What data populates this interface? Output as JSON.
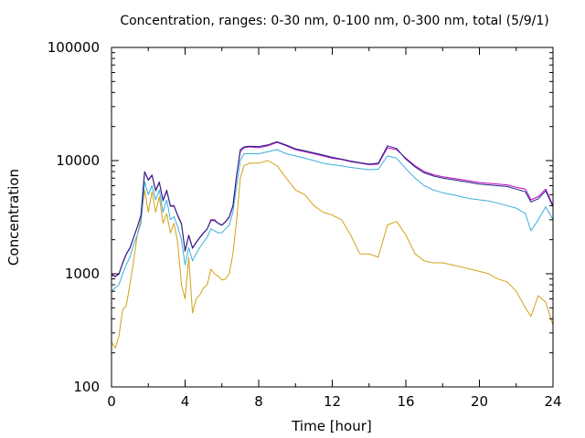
{
  "chart_data": {
    "type": "line",
    "title": "Concentration, ranges: 0-30 nm, 0-100 nm, 0-300 nm, total (5/9/1)",
    "xlabel": "Time [hour]",
    "ylabel": "Concentration",
    "xlim": [
      0,
      24
    ],
    "ylim": [
      100,
      100000
    ],
    "y_scale": "log",
    "grid": false,
    "legend": "none",
    "x_ticks": [
      0,
      4,
      8,
      12,
      16,
      20,
      24
    ],
    "x_tick_labels": [
      "0",
      "4",
      "8",
      "12",
      "16",
      "20",
      "24"
    ],
    "y_ticks": [
      100,
      1000,
      10000,
      100000
    ],
    "y_tick_labels": [
      "100",
      "1000",
      "10000",
      "100000"
    ],
    "series": [
      {
        "color": "#d4a017",
        "x": [
          0,
          0.2,
          0.4,
          0.6,
          0.8,
          1.0,
          1.2,
          1.4,
          1.6,
          1.8,
          2.0,
          2.2,
          2.4,
          2.6,
          2.8,
          3.0,
          3.2,
          3.4,
          3.6,
          3.8,
          4.0,
          4.2,
          4.4,
          4.6,
          4.8,
          5.0,
          5.2,
          5.4,
          5.6,
          5.8,
          6.0,
          6.2,
          6.4,
          6.6,
          6.8,
          7.0,
          7.2,
          7.5,
          8.0,
          8.5,
          9.0,
          9.5,
          10.0,
          10.5,
          11.0,
          11.5,
          12.0,
          12.5,
          13.0,
          13.5,
          14.0,
          14.5,
          15.0,
          15.5,
          16.0,
          16.5,
          17.0,
          17.5,
          18.0,
          18.5,
          19.0,
          19.5,
          20.0,
          20.5,
          21.0,
          21.5,
          22.0,
          22.5,
          22.8,
          23.2,
          23.6,
          24.0
        ],
        "values": [
          250,
          220,
          280,
          480,
          520,
          800,
          1300,
          2200,
          3000,
          5500,
          3500,
          5300,
          3500,
          4800,
          2800,
          3400,
          2300,
          2800,
          1900,
          800,
          600,
          1400,
          450,
          600,
          650,
          750,
          800,
          1100,
          1000,
          950,
          880,
          900,
          1000,
          1500,
          3000,
          7000,
          9000,
          9500,
          9500,
          10000,
          9000,
          7000,
          5500,
          5000,
          4000,
          3500,
          3300,
          3000,
          2200,
          1500,
          1500,
          1400,
          2700,
          2900,
          2200,
          1500,
          1300,
          1250,
          1250,
          1200,
          1150,
          1100,
          1050,
          1000,
          900,
          850,
          700,
          500,
          420,
          640,
          560,
          350
        ]
      },
      {
        "color": "#3aaedc",
        "x": [
          0,
          0.2,
          0.4,
          0.6,
          0.8,
          1.0,
          1.2,
          1.4,
          1.6,
          1.8,
          2.0,
          2.2,
          2.4,
          2.6,
          2.8,
          3.0,
          3.2,
          3.4,
          3.6,
          3.8,
          4.0,
          4.2,
          4.4,
          4.6,
          4.8,
          5.0,
          5.2,
          5.4,
          5.6,
          5.8,
          6.0,
          6.2,
          6.4,
          6.6,
          6.8,
          7.0,
          7.2,
          7.5,
          8.0,
          8.5,
          9.0,
          9.5,
          10.0,
          10.5,
          11.0,
          11.5,
          12.0,
          12.5,
          13.0,
          13.5,
          14.0,
          14.5,
          15.0,
          15.5,
          16.0,
          16.5,
          17.0,
          17.5,
          18.0,
          18.5,
          19.0,
          19.5,
          20.0,
          20.5,
          21.0,
          21.5,
          22.0,
          22.5,
          22.8,
          23.2,
          23.6,
          24.0
        ],
        "values": [
          700,
          750,
          800,
          1000,
          1200,
          1400,
          1800,
          2200,
          2800,
          6500,
          5000,
          6000,
          4500,
          5500,
          3500,
          4500,
          3000,
          3200,
          2600,
          2000,
          1200,
          1700,
          1300,
          1500,
          1700,
          1900,
          2100,
          2500,
          2400,
          2300,
          2300,
          2500,
          2700,
          3500,
          6000,
          10000,
          11500,
          11500,
          11500,
          12000,
          12500,
          11500,
          11000,
          10500,
          10000,
          9500,
          9200,
          9000,
          8700,
          8500,
          8300,
          8400,
          11000,
          10500,
          8500,
          7000,
          6000,
          5500,
          5200,
          5000,
          4800,
          4600,
          4500,
          4400,
          4200,
          4000,
          3800,
          3400,
          2400,
          3000,
          3900,
          3000
        ]
      },
      {
        "color": "#c000c0",
        "x": [
          0,
          0.2,
          0.4,
          0.6,
          0.8,
          1.0,
          1.2,
          1.4,
          1.6,
          1.8,
          2.0,
          2.2,
          2.4,
          2.6,
          2.8,
          3.0,
          3.2,
          3.4,
          3.6,
          3.8,
          4.0,
          4.2,
          4.4,
          4.6,
          4.8,
          5.0,
          5.2,
          5.4,
          5.6,
          5.8,
          6.0,
          6.2,
          6.4,
          6.6,
          6.8,
          7.0,
          7.2,
          7.5,
          8.0,
          8.5,
          9.0,
          9.5,
          10.0,
          10.5,
          11.0,
          11.5,
          12.0,
          12.5,
          13.0,
          13.5,
          14.0,
          14.5,
          15.0,
          15.5,
          16.0,
          16.5,
          17.0,
          17.5,
          18.0,
          18.5,
          19.0,
          19.5,
          20.0,
          20.5,
          21.0,
          21.5,
          22.0,
          22.5,
          22.8,
          23.2,
          23.6,
          24.0
        ],
        "values": [
          1000,
          950,
          1000,
          1250,
          1500,
          1700,
          2100,
          2600,
          3300,
          8000,
          6800,
          7500,
          5500,
          6500,
          4500,
          5500,
          4000,
          4000,
          3300,
          2800,
          1600,
          2200,
          1700,
          1900,
          2100,
          2300,
          2500,
          3000,
          3000,
          2800,
          2700,
          2900,
          3200,
          4000,
          7500,
          12000,
          13000,
          13200,
          13000,
          13500,
          14500,
          13500,
          12500,
          12000,
          11500,
          11000,
          10500,
          10200,
          9800,
          9500,
          9200,
          9300,
          13000,
          12500,
          10500,
          9000,
          8000,
          7500,
          7200,
          7000,
          6800,
          6600,
          6400,
          6300,
          6200,
          6100,
          5800,
          5600,
          4500,
          4800,
          5600,
          4000
        ]
      },
      {
        "color": "#1a237e",
        "x": [
          0,
          0.2,
          0.4,
          0.6,
          0.8,
          1.0,
          1.2,
          1.4,
          1.6,
          1.8,
          2.0,
          2.2,
          2.4,
          2.6,
          2.8,
          3.0,
          3.2,
          3.4,
          3.6,
          3.8,
          4.0,
          4.2,
          4.4,
          4.6,
          4.8,
          5.0,
          5.2,
          5.4,
          5.6,
          5.8,
          6.0,
          6.2,
          6.4,
          6.6,
          6.8,
          7.0,
          7.2,
          7.5,
          8.0,
          8.5,
          9.0,
          9.5,
          10.0,
          10.5,
          11.0,
          11.5,
          12.0,
          12.5,
          13.0,
          13.5,
          14.0,
          14.5,
          15.0,
          15.5,
          16.0,
          16.5,
          17.0,
          17.5,
          18.0,
          18.5,
          19.0,
          19.5,
          20.0,
          20.5,
          21.0,
          21.5,
          22.0,
          22.5,
          22.8,
          23.2,
          23.6,
          24.0
        ],
        "values": [
          980,
          940,
          990,
          1230,
          1480,
          1680,
          2080,
          2580,
          3250,
          7900,
          6700,
          7400,
          5400,
          6400,
          4400,
          5400,
          3950,
          3950,
          3250,
          2750,
          1580,
          2170,
          1680,
          1880,
          2080,
          2280,
          2480,
          2950,
          2950,
          2780,
          2680,
          2880,
          3150,
          3950,
          7400,
          12500,
          13200,
          13400,
          13300,
          13800,
          14700,
          13700,
          12700,
          12200,
          11700,
          11200,
          10700,
          10300,
          9900,
          9600,
          9300,
          9500,
          13500,
          12800,
          10300,
          8800,
          7800,
          7300,
          7000,
          6800,
          6600,
          6400,
          6200,
          6100,
          6000,
          5900,
          5600,
          5300,
          4300,
          4600,
          5400,
          3900
        ]
      }
    ]
  }
}
